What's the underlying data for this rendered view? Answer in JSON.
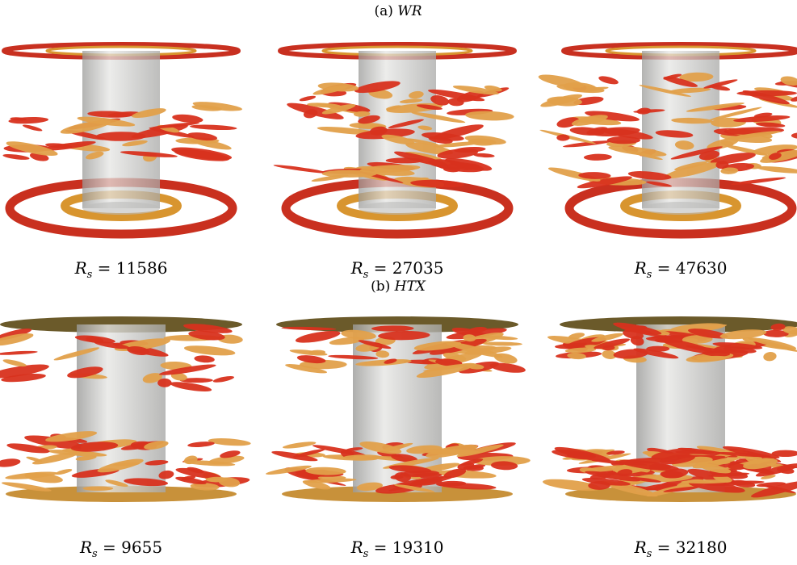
{
  "panels": [
    {
      "label": "(a)",
      "name": "WR",
      "cases": [
        {
          "variable": "R",
          "subscript": "s",
          "relation": "=",
          "value": "11586"
        },
        {
          "variable": "R",
          "subscript": "s",
          "relation": "=",
          "value": "27035"
        },
        {
          "variable": "R",
          "subscript": "s",
          "relation": "=",
          "value": "47630"
        }
      ]
    },
    {
      "label": "(b)",
      "name": "HTX",
      "cases": [
        {
          "variable": "R",
          "subscript": "s",
          "relation": "=",
          "value": "9655"
        },
        {
          "variable": "R",
          "subscript": "s",
          "relation": "=",
          "value": "19310"
        },
        {
          "variable": "R",
          "subscript": "s",
          "relation": "=",
          "value": "32180"
        }
      ]
    }
  ]
}
